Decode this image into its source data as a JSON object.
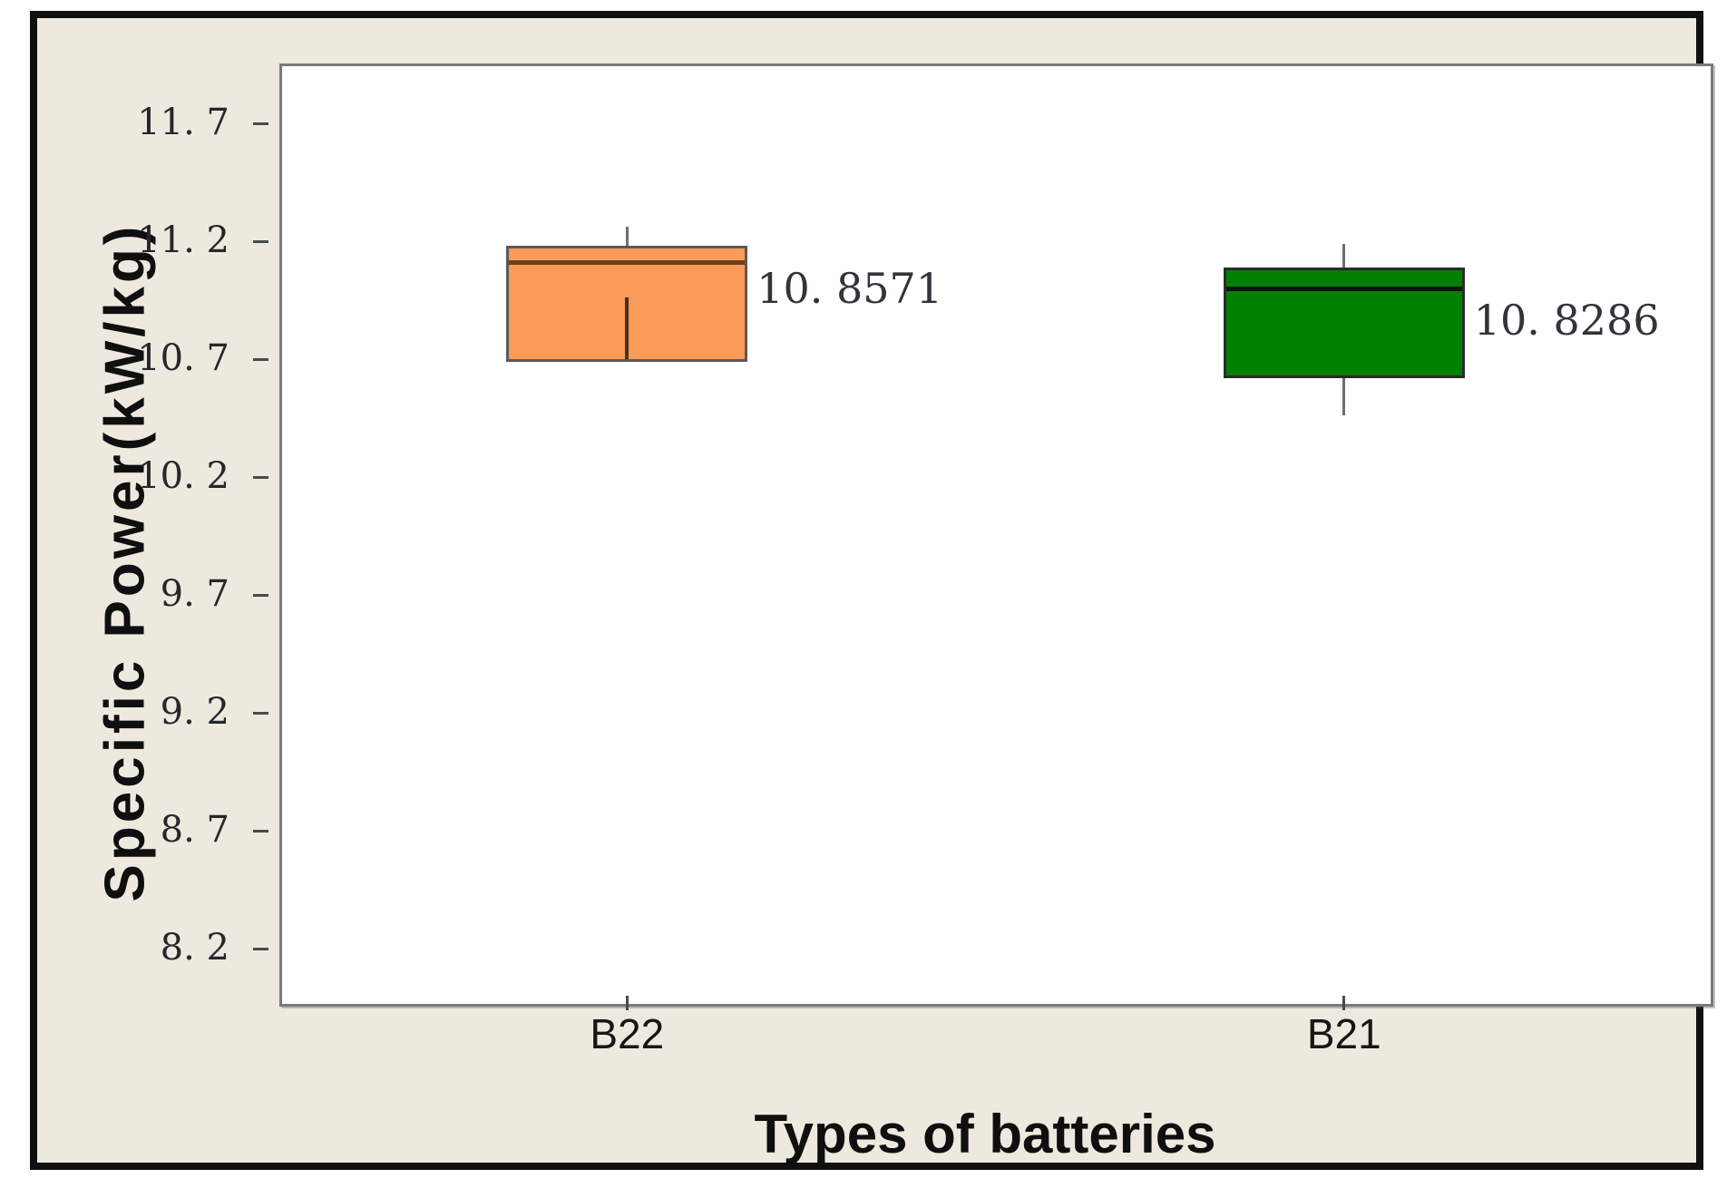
{
  "chart_data": {
    "type": "boxplot",
    "title": "",
    "xlabel": "Types of batteries",
    "ylabel": "Specific Power(kW/kg)",
    "ylim": [
      8.0,
      12.0
    ],
    "grid": false,
    "legend": "none",
    "panel_bg": "#EDE9DF",
    "plot_bg": "#FFFFFF",
    "yticks": [
      {
        "value": 11.7,
        "label": "11. 7"
      },
      {
        "value": 11.2,
        "label": "11. 2"
      },
      {
        "value": 10.7,
        "label": "10. 7"
      },
      {
        "value": 10.2,
        "label": "10. 2"
      },
      {
        "value": 9.7,
        "label": "9. 7"
      },
      {
        "value": 9.2,
        "label": "9. 2"
      },
      {
        "value": 8.7,
        "label": "8. 7"
      },
      {
        "value": 8.2,
        "label": "8. 2"
      }
    ],
    "categories": [
      "B22",
      "B21"
    ],
    "series": [
      {
        "name": "B22",
        "x_fraction": 0.25,
        "color": "#FB9A59",
        "border_color": "#5a5a5a",
        "median_color": "#6e4018",
        "inner_line_color": "#4a3020",
        "q1": 10.69,
        "q3": 11.18,
        "median": 11.11,
        "whisker_high": 11.26,
        "whisker_low": null,
        "inner_line": {
          "from": 10.96,
          "to": 10.69
        },
        "mean": 10.8571,
        "mean_label": "10. 8571",
        "label_value": 11.0
      },
      {
        "name": "B21",
        "x_fraction": 0.75,
        "color": "#008000",
        "border_color": "#2b2b2b",
        "median_color": "#101010",
        "inner_line_color": null,
        "q1": 10.62,
        "q3": 11.09,
        "median": 11.0,
        "whisker_high": 11.19,
        "whisker_low": 10.46,
        "inner_line": null,
        "mean": 10.8286,
        "mean_label": "10. 8286",
        "label_value": 10.865
      }
    ]
  }
}
